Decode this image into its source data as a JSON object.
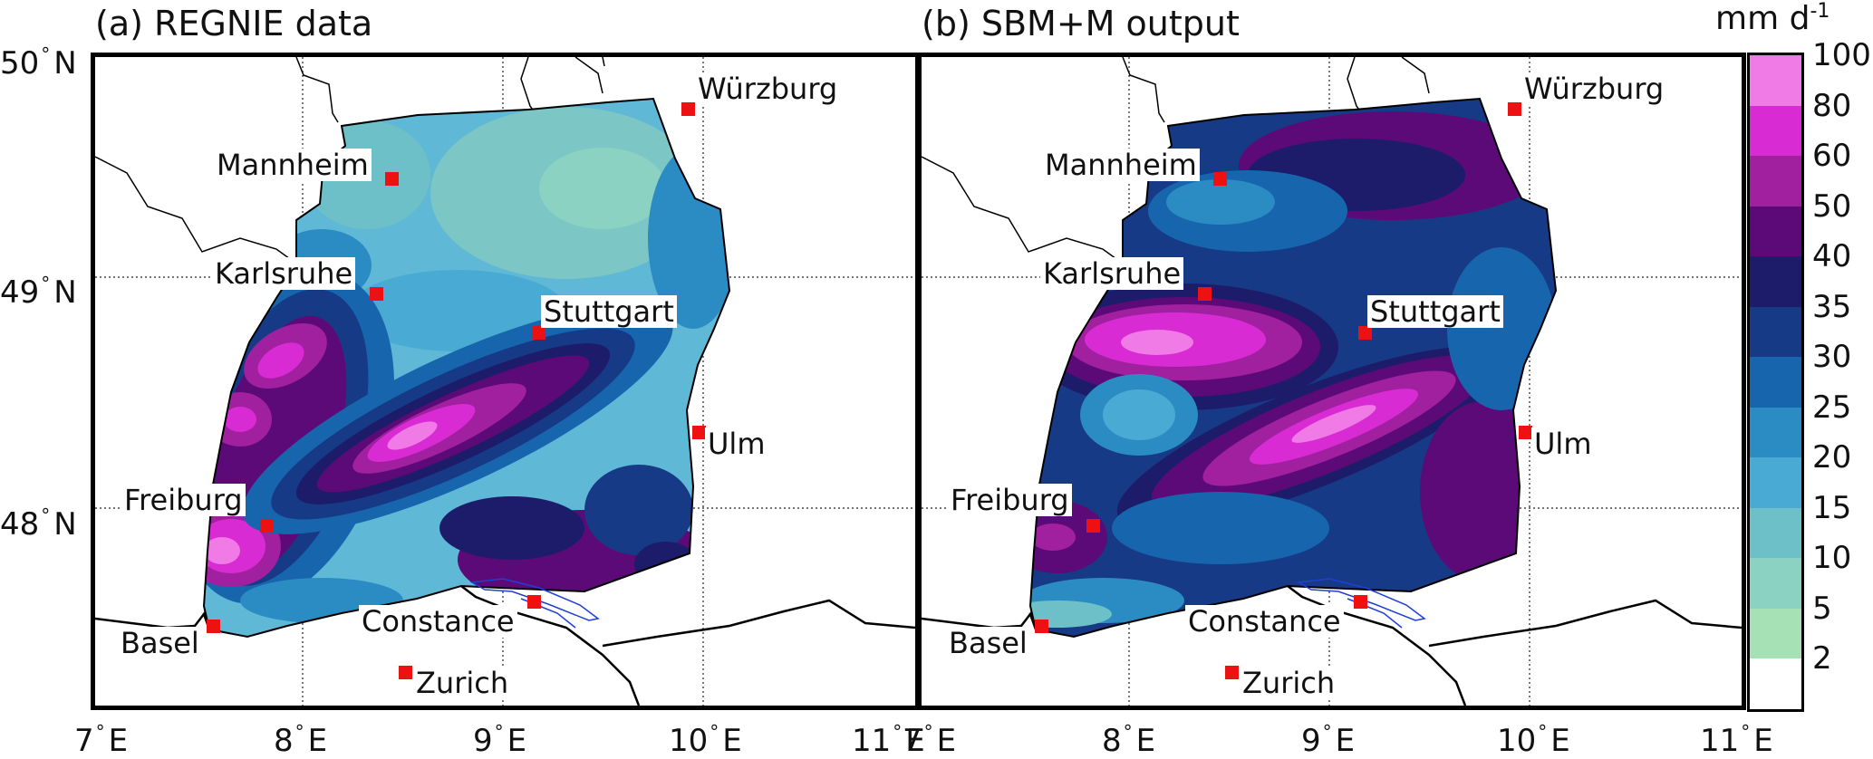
{
  "panels": [
    {
      "title": "(a) REGNIE data"
    },
    {
      "title": "(b) SBM+M output"
    }
  ],
  "axes": {
    "lat_labels": [
      "50",
      "49",
      "48"
    ],
    "lat_suffix": "N",
    "lon_labels": [
      "7",
      "8",
      "9",
      "10",
      "11"
    ],
    "lon_suffix": "E"
  },
  "cities": [
    "Würzburg",
    "Mannheim",
    "Karlsruhe",
    "Stuttgart",
    "Ulm",
    "Freiburg",
    "Basel",
    "Constance",
    "Zurich"
  ],
  "colorbar": {
    "unit": "mm d",
    "unit_exp": "-1",
    "ticks": [
      "100",
      "80",
      "60",
      "50",
      "40",
      "35",
      "30",
      "25",
      "20",
      "15",
      "10",
      "5",
      "2"
    ],
    "colors_top_to_bottom": [
      "#f07ae6",
      "#d92bd4",
      "#a0209f",
      "#5c0a78",
      "#1c1c6a",
      "#173a86",
      "#1766ad",
      "#2b8cc4",
      "#49abd3",
      "#6dc0c8",
      "#8cd2c3",
      "#a6e1b6",
      "#ffffff"
    ]
  }
}
